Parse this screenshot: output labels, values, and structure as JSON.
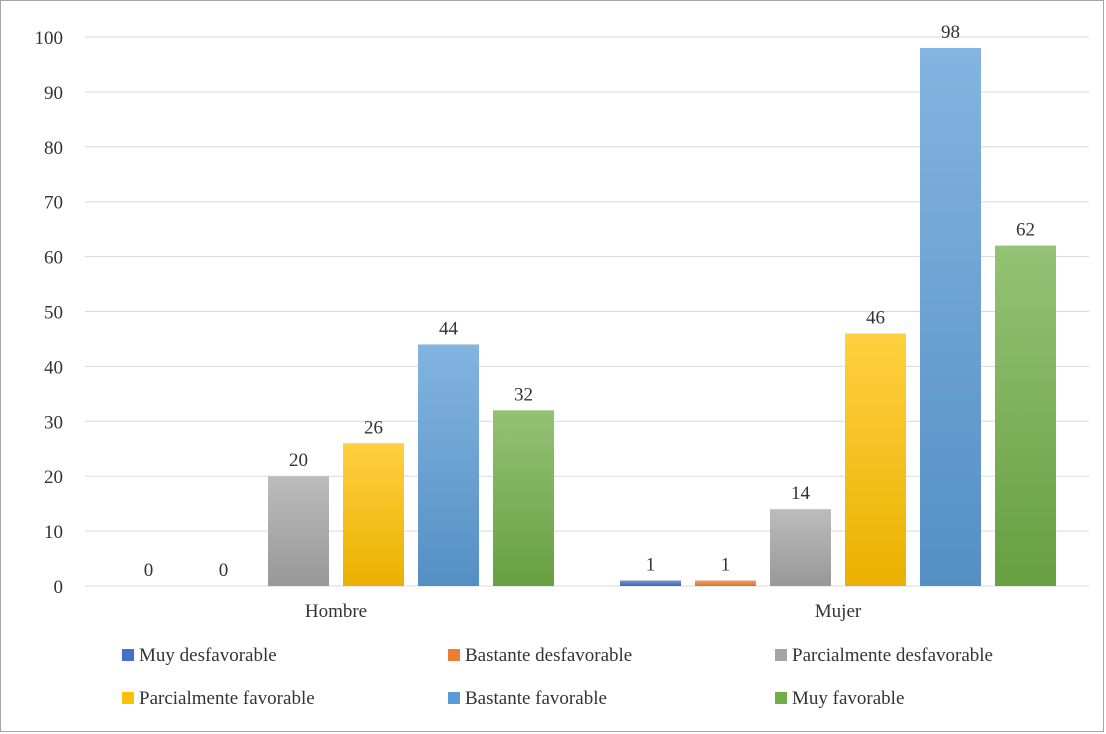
{
  "chart_data": {
    "type": "bar",
    "categories": [
      "Hombre",
      "Mujer"
    ],
    "series": [
      {
        "name": "Muy desfavorable",
        "values": [
          0,
          1
        ],
        "color": "#4472c4"
      },
      {
        "name": "Bastante desfavorable",
        "values": [
          0,
          1
        ],
        "color": "#ed7d31"
      },
      {
        "name": "Parcialmente desfavorable",
        "values": [
          20,
          14
        ],
        "color": "#a5a5a5"
      },
      {
        "name": "Parcialmente favorable",
        "values": [
          26,
          46
        ],
        "color": "#ffc000"
      },
      {
        "name": "Bastante favorable",
        "values": [
          44,
          98
        ],
        "color": "#5b9bd5"
      },
      {
        "name": "Muy favorable",
        "values": [
          32,
          62
        ],
        "color": "#70ad47"
      }
    ],
    "yticks": [
      "0",
      "10",
      "20",
      "30",
      "40",
      "50",
      "60",
      "70",
      "80",
      "90",
      "100"
    ],
    "ylim": [
      0,
      100
    ],
    "grid": true,
    "legend_position": "bottom",
    "data_labels": true
  }
}
